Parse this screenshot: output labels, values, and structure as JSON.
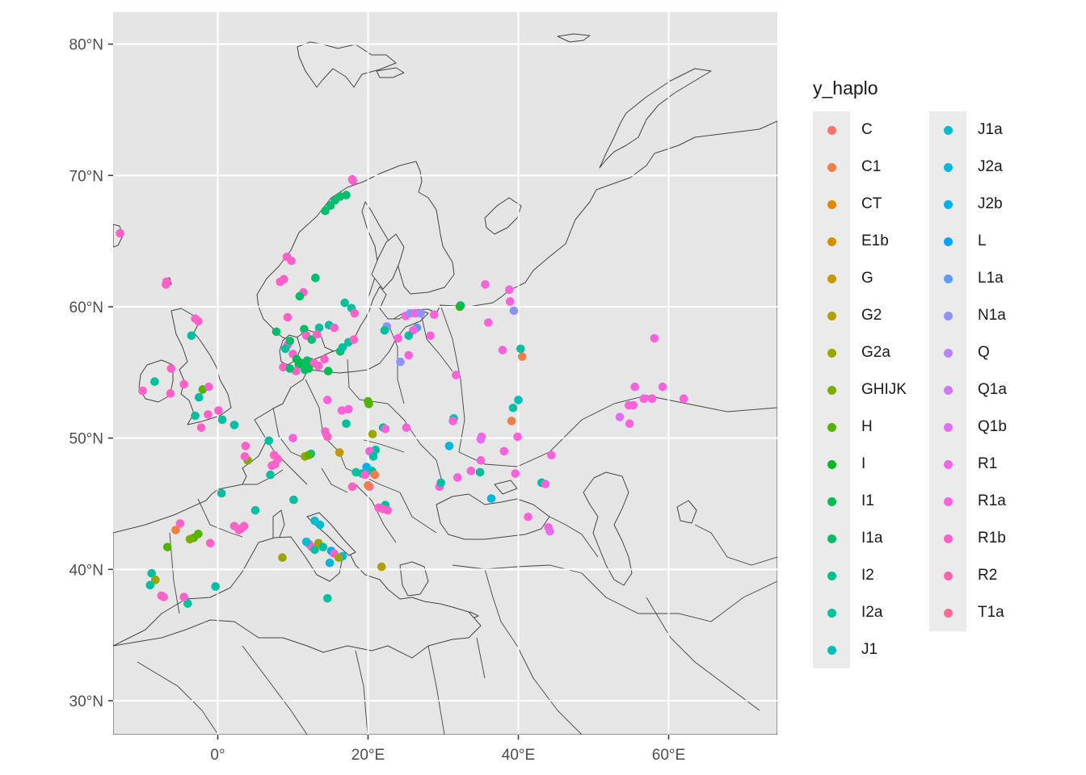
{
  "map": {
    "x_ticks": [
      "0°",
      "20°E",
      "40°E",
      "60°E"
    ],
    "y_ticks": [
      "30°N",
      "40°N",
      "50°N",
      "60°N",
      "70°N",
      "80°N"
    ],
    "colors": {
      "panel": "#e5e5e5",
      "land": "#e6e6e6",
      "border": "#444444",
      "grid": "#ffffff"
    }
  },
  "legend": {
    "title": "y_haplo",
    "items": [
      {
        "label": "C",
        "color": "#F8766D"
      },
      {
        "label": "C1",
        "color": "#EF7F49"
      },
      {
        "label": "CT",
        "color": "#E38900"
      },
      {
        "label": "E1b",
        "color": "#D49200"
      },
      {
        "label": "G",
        "color": "#C49A00"
      },
      {
        "label": "G2",
        "color": "#B0A100"
      },
      {
        "label": "G2a",
        "color": "#99A800"
      },
      {
        "label": "GHIJK",
        "color": "#7CAE00"
      },
      {
        "label": "H",
        "color": "#53B400"
      },
      {
        "label": "I",
        "color": "#00B81F"
      },
      {
        "label": "I1",
        "color": "#00BB4E"
      },
      {
        "label": "I1a",
        "color": "#00BE6C"
      },
      {
        "label": "I2",
        "color": "#00BF87"
      },
      {
        "label": "I2a",
        "color": "#00C0A0"
      },
      {
        "label": "J1",
        "color": "#00BFB7"
      },
      {
        "label": "J1a",
        "color": "#00BCCD"
      },
      {
        "label": "J2a",
        "color": "#00B7E0"
      },
      {
        "label": "J2b",
        "color": "#00AFF2"
      },
      {
        "label": "L",
        "color": "#00A5FF"
      },
      {
        "label": "L1a",
        "color": "#5E9AFF"
      },
      {
        "label": "N1a",
        "color": "#8F91FF"
      },
      {
        "label": "Q",
        "color": "#B385FF"
      },
      {
        "label": "Q1a",
        "color": "#CF78FF"
      },
      {
        "label": "Q1b",
        "color": "#E36EF6"
      },
      {
        "label": "R1",
        "color": "#F066E9"
      },
      {
        "label": "R1a",
        "color": "#FA62DB"
      },
      {
        "label": "R1b",
        "color": "#FF61C9"
      },
      {
        "label": "R2",
        "color": "#FF65AE"
      },
      {
        "label": "T1a",
        "color": "#FF6C91"
      }
    ]
  },
  "points": [
    {
      "lon": 2.2,
      "lat": 51.0,
      "h": "I2a"
    },
    {
      "lon": -13.0,
      "lat": 65.6,
      "h": "R1b"
    },
    {
      "lon": -6.8,
      "lat": 61.9,
      "h": "R1b"
    },
    {
      "lon": -6.9,
      "lat": 61.7,
      "h": "R1b"
    },
    {
      "lon": -3.0,
      "lat": 59.1,
      "h": "R1b"
    },
    {
      "lon": -2.6,
      "lat": 58.9,
      "h": "R1b"
    },
    {
      "lon": -3.5,
      "lat": 57.8,
      "h": "I2a"
    },
    {
      "lon": -6.2,
      "lat": 55.3,
      "h": "R1b"
    },
    {
      "lon": -8.4,
      "lat": 54.3,
      "h": "I2a"
    },
    {
      "lon": -10.0,
      "lat": 53.6,
      "h": "R1b"
    },
    {
      "lon": -6.3,
      "lat": 53.4,
      "h": "R1b"
    },
    {
      "lon": -4.5,
      "lat": 54.1,
      "h": "R1b"
    },
    {
      "lon": -2.0,
      "lat": 53.7,
      "h": "H"
    },
    {
      "lon": -1.2,
      "lat": 53.9,
      "h": "R1b"
    },
    {
      "lon": -2.5,
      "lat": 53.1,
      "h": "I2a"
    },
    {
      "lon": -3.0,
      "lat": 51.7,
      "h": "I2a"
    },
    {
      "lon": -1.3,
      "lat": 51.8,
      "h": "R1b"
    },
    {
      "lon": 0.1,
      "lat": 52.1,
      "h": "R1b"
    },
    {
      "lon": 0.6,
      "lat": 51.4,
      "h": "I2a"
    },
    {
      "lon": -2.2,
      "lat": 50.8,
      "h": "R1b"
    },
    {
      "lon": 3.7,
      "lat": 49.4,
      "h": "R1b"
    },
    {
      "lon": 4.0,
      "lat": 48.3,
      "h": "GHIJK"
    },
    {
      "lon": 3.6,
      "lat": 48.6,
      "h": "R1b"
    },
    {
      "lon": 6.8,
      "lat": 49.8,
      "h": "I2a"
    },
    {
      "lon": 7.5,
      "lat": 48.7,
      "h": "R1b"
    },
    {
      "lon": 7.2,
      "lat": 47.9,
      "h": "R1b"
    },
    {
      "lon": 7.0,
      "lat": 47.2,
      "h": "I2a"
    },
    {
      "lon": 0.5,
      "lat": 45.8,
      "h": "I2a"
    },
    {
      "lon": 5.0,
      "lat": 44.5,
      "h": "I2a"
    },
    {
      "lon": 2.2,
      "lat": 43.3,
      "h": "R1b"
    },
    {
      "lon": 3.1,
      "lat": 43.1,
      "h": "R1b"
    },
    {
      "lon": 3.5,
      "lat": 43.3,
      "h": "R1b"
    },
    {
      "lon": 2.8,
      "lat": 43.0,
      "h": "R1b"
    },
    {
      "lon": -5.0,
      "lat": 43.5,
      "h": "R1b"
    },
    {
      "lon": -5.6,
      "lat": 43.0,
      "h": "C1"
    },
    {
      "lon": -3.2,
      "lat": 42.4,
      "h": "H"
    },
    {
      "lon": -2.6,
      "lat": 42.7,
      "h": "H"
    },
    {
      "lon": -3.7,
      "lat": 42.3,
      "h": "GHIJK"
    },
    {
      "lon": -1.0,
      "lat": 42.0,
      "h": "R1b"
    },
    {
      "lon": -6.7,
      "lat": 41.7,
      "h": "H"
    },
    {
      "lon": -8.8,
      "lat": 39.7,
      "h": "I2a"
    },
    {
      "lon": -8.3,
      "lat": 39.2,
      "h": "G2a"
    },
    {
      "lon": -9.0,
      "lat": 38.8,
      "h": "I2a"
    },
    {
      "lon": -7.5,
      "lat": 38.0,
      "h": "R1b"
    },
    {
      "lon": -7.2,
      "lat": 37.9,
      "h": "R1b"
    },
    {
      "lon": -4.0,
      "lat": 37.4,
      "h": "I2a"
    },
    {
      "lon": -4.5,
      "lat": 37.9,
      "h": "R1b"
    },
    {
      "lon": -0.3,
      "lat": 38.7,
      "h": "I2a"
    },
    {
      "lon": 9.2,
      "lat": 63.8,
      "h": "R1b"
    },
    {
      "lon": 9.8,
      "lat": 63.5,
      "h": "R1b"
    },
    {
      "lon": 8.3,
      "lat": 61.9,
      "h": "R1b"
    },
    {
      "lon": 8.8,
      "lat": 62.1,
      "h": "R1b"
    },
    {
      "lon": 11.4,
      "lat": 61.1,
      "h": "R1b"
    },
    {
      "lon": 10.9,
      "lat": 60.8,
      "h": "I1a"
    },
    {
      "lon": 9.3,
      "lat": 59.2,
      "h": "R1b"
    },
    {
      "lon": 7.8,
      "lat": 58.1,
      "h": "I1a"
    },
    {
      "lon": 9.3,
      "lat": 57.1,
      "h": "R1b"
    },
    {
      "lon": 9.0,
      "lat": 56.8,
      "h": "I2a"
    },
    {
      "lon": 9.6,
      "lat": 57.4,
      "h": "I1a"
    },
    {
      "lon": 11.5,
      "lat": 58.3,
      "h": "I1a"
    },
    {
      "lon": 11.8,
      "lat": 57.8,
      "h": "R1b"
    },
    {
      "lon": 12.5,
      "lat": 57.5,
      "h": "I1a"
    },
    {
      "lon": 13.5,
      "lat": 58.4,
      "h": "I2a"
    },
    {
      "lon": 14.8,
      "lat": 58.6,
      "h": "I2a"
    },
    {
      "lon": 15.5,
      "lat": 58.4,
      "h": "R1b"
    },
    {
      "lon": 13.2,
      "lat": 57.9,
      "h": "R1b"
    },
    {
      "lon": 16.9,
      "lat": 60.3,
      "h": "I2a"
    },
    {
      "lon": 17.8,
      "lat": 59.9,
      "h": "I2a"
    },
    {
      "lon": 18.2,
      "lat": 59.5,
      "h": "R1b"
    },
    {
      "lon": 17.4,
      "lat": 57.3,
      "h": "I2a"
    },
    {
      "lon": 18.1,
      "lat": 57.5,
      "h": "R1b"
    },
    {
      "lon": 16.3,
      "lat": 56.6,
      "h": "I1a"
    },
    {
      "lon": 16.6,
      "lat": 56.9,
      "h": "I2a"
    },
    {
      "lon": 10.0,
      "lat": 56.4,
      "h": "R1b"
    },
    {
      "lon": 10.5,
      "lat": 56.0,
      "h": "I1"
    },
    {
      "lon": 10.8,
      "lat": 55.6,
      "h": "I1"
    },
    {
      "lon": 11.4,
      "lat": 55.7,
      "h": "I1"
    },
    {
      "lon": 11.9,
      "lat": 55.9,
      "h": "I1a"
    },
    {
      "lon": 12.3,
      "lat": 55.8,
      "h": "I1"
    },
    {
      "lon": 12.8,
      "lat": 55.7,
      "h": "R1b"
    },
    {
      "lon": 12.1,
      "lat": 55.3,
      "h": "I1"
    },
    {
      "lon": 11.6,
      "lat": 55.2,
      "h": "I1a"
    },
    {
      "lon": 10.4,
      "lat": 55.1,
      "h": "R1b"
    },
    {
      "lon": 13.4,
      "lat": 55.5,
      "h": "R1b"
    },
    {
      "lon": 14.2,
      "lat": 56.0,
      "h": "R1b"
    },
    {
      "lon": 14.7,
      "lat": 55.1,
      "h": "I1"
    },
    {
      "lon": 8.7,
      "lat": 55.4,
      "h": "R1b"
    },
    {
      "lon": 9.6,
      "lat": 55.3,
      "h": "I1a"
    },
    {
      "lon": 13.0,
      "lat": 62.2,
      "h": "I1a"
    },
    {
      "lon": 14.3,
      "lat": 67.3,
      "h": "I1a"
    },
    {
      "lon": 15.0,
      "lat": 67.7,
      "h": "I1a"
    },
    {
      "lon": 15.6,
      "lat": 68.1,
      "h": "I1a"
    },
    {
      "lon": 16.3,
      "lat": 68.4,
      "h": "I1a"
    },
    {
      "lon": 17.1,
      "lat": 68.5,
      "h": "I1a"
    },
    {
      "lon": 18.0,
      "lat": 69.6,
      "h": "R1b"
    },
    {
      "lon": 17.9,
      "lat": 69.7,
      "h": "R1b"
    },
    {
      "lon": 14.6,
      "lat": 52.9,
      "h": "R1a"
    },
    {
      "lon": 17.4,
      "lat": 52.2,
      "h": "R1a"
    },
    {
      "lon": 16.5,
      "lat": 52.1,
      "h": "R1a"
    },
    {
      "lon": 20.1,
      "lat": 52.6,
      "h": "H"
    },
    {
      "lon": 20.0,
      "lat": 52.8,
      "h": "H"
    },
    {
      "lon": 17.1,
      "lat": 51.1,
      "h": "I2a"
    },
    {
      "lon": 14.3,
      "lat": 50.5,
      "h": "R1b"
    },
    {
      "lon": 14.6,
      "lat": 50.1,
      "h": "R1b"
    },
    {
      "lon": 10.0,
      "lat": 50.0,
      "h": "R1a"
    },
    {
      "lon": 11.6,
      "lat": 48.6,
      "h": "G2a"
    },
    {
      "lon": 12.4,
      "lat": 48.8,
      "h": "I2a"
    },
    {
      "lon": 12.1,
      "lat": 48.7,
      "h": "H"
    },
    {
      "lon": 16.2,
      "lat": 48.9,
      "h": "G"
    },
    {
      "lon": 20.6,
      "lat": 50.3,
      "h": "G2a"
    },
    {
      "lon": 22.0,
      "lat": 50.8,
      "h": "I2a"
    },
    {
      "lon": 22.3,
      "lat": 50.7,
      "h": "R1a"
    },
    {
      "lon": 21.0,
      "lat": 49.1,
      "h": "I2a"
    },
    {
      "lon": 20.2,
      "lat": 49.0,
      "h": "R1a"
    },
    {
      "lon": 20.7,
      "lat": 48.6,
      "h": "I2a"
    },
    {
      "lon": 19.8,
      "lat": 47.8,
      "h": "J2b"
    },
    {
      "lon": 20.5,
      "lat": 47.5,
      "h": "I2a"
    },
    {
      "lon": 19.2,
      "lat": 47.3,
      "h": "I2a"
    },
    {
      "lon": 19.6,
      "lat": 47.2,
      "h": "R1b"
    },
    {
      "lon": 20.9,
      "lat": 47.2,
      "h": "C1"
    },
    {
      "lon": 20.2,
      "lat": 46.3,
      "h": "R1a"
    },
    {
      "lon": 20.0,
      "lat": 46.4,
      "h": "C1"
    },
    {
      "lon": 18.4,
      "lat": 47.4,
      "h": "I2a"
    },
    {
      "lon": 17.9,
      "lat": 46.3,
      "h": "R1b"
    },
    {
      "lon": 21.4,
      "lat": 44.7,
      "h": "R1b"
    },
    {
      "lon": 22.3,
      "lat": 44.9,
      "h": "I2a"
    },
    {
      "lon": 22.0,
      "lat": 44.6,
      "h": "R1b"
    },
    {
      "lon": 22.6,
      "lat": 44.5,
      "h": "R1b"
    },
    {
      "lon": 25.1,
      "lat": 50.8,
      "h": "R1a"
    },
    {
      "lon": 24.0,
      "lat": 57.6,
      "h": "R1a"
    },
    {
      "lon": 22.5,
      "lat": 58.5,
      "h": "N1a"
    },
    {
      "lon": 22.2,
      "lat": 58.2,
      "h": "I2a"
    },
    {
      "lon": 25.0,
      "lat": 59.3,
      "h": "R1a"
    },
    {
      "lon": 25.6,
      "lat": 59.5,
      "h": "N1a"
    },
    {
      "lon": 26.3,
      "lat": 59.5,
      "h": "R1a"
    },
    {
      "lon": 27.0,
      "lat": 59.5,
      "h": "N1a"
    },
    {
      "lon": 26.5,
      "lat": 58.4,
      "h": "L1a"
    },
    {
      "lon": 26.0,
      "lat": 58.2,
      "h": "R1a"
    },
    {
      "lon": 25.4,
      "lat": 57.8,
      "h": "I2a"
    },
    {
      "lon": 24.3,
      "lat": 55.8,
      "h": "N1a"
    },
    {
      "lon": 25.4,
      "lat": 56.3,
      "h": "R1a"
    },
    {
      "lon": 28.3,
      "lat": 57.8,
      "h": "R1a"
    },
    {
      "lon": 28.8,
      "lat": 59.4,
      "h": "R1a"
    },
    {
      "lon": 32.2,
      "lat": 60.0,
      "h": "H"
    },
    {
      "lon": 32.3,
      "lat": 60.1,
      "h": "I1"
    },
    {
      "lon": 31.7,
      "lat": 54.8,
      "h": "R1a"
    },
    {
      "lon": 31.4,
      "lat": 51.5,
      "h": "I2a"
    },
    {
      "lon": 31.3,
      "lat": 51.3,
      "h": "R1a"
    },
    {
      "lon": 30.8,
      "lat": 49.4,
      "h": "J2a"
    },
    {
      "lon": 31.9,
      "lat": 47.0,
      "h": "R1a"
    },
    {
      "lon": 29.5,
      "lat": 46.3,
      "h": "R1a"
    },
    {
      "lon": 29.7,
      "lat": 46.6,
      "h": "I2a"
    },
    {
      "lon": 33.7,
      "lat": 47.5,
      "h": "R1a"
    },
    {
      "lon": 34.9,
      "lat": 47.4,
      "h": "I2a"
    },
    {
      "lon": 35.0,
      "lat": 48.3,
      "h": "R1a"
    },
    {
      "lon": 35.1,
      "lat": 50.1,
      "h": "R1a"
    },
    {
      "lon": 35.0,
      "lat": 49.9,
      "h": "Q1b"
    },
    {
      "lon": 36.4,
      "lat": 45.4,
      "h": "J2a"
    },
    {
      "lon": 35.6,
      "lat": 61.7,
      "h": "R1a"
    },
    {
      "lon": 36.0,
      "lat": 58.8,
      "h": "R1a"
    },
    {
      "lon": 37.9,
      "lat": 56.7,
      "h": "R1a"
    },
    {
      "lon": 38.8,
      "lat": 61.3,
      "h": "R1a"
    },
    {
      "lon": 38.9,
      "lat": 60.4,
      "h": "R1a"
    },
    {
      "lon": 39.4,
      "lat": 59.7,
      "h": "N1a"
    },
    {
      "lon": 40.3,
      "lat": 56.8,
      "h": "I2a"
    },
    {
      "lon": 40.5,
      "lat": 56.2,
      "h": "C1"
    },
    {
      "lon": 39.3,
      "lat": 52.3,
      "h": "I2a"
    },
    {
      "lon": 40.0,
      "lat": 52.9,
      "h": "J1"
    },
    {
      "lon": 39.1,
      "lat": 51.3,
      "h": "C1"
    },
    {
      "lon": 39.9,
      "lat": 50.1,
      "h": "R1a"
    },
    {
      "lon": 38.1,
      "lat": 49.0,
      "h": "R1a"
    },
    {
      "lon": 39.6,
      "lat": 47.3,
      "h": "R1a"
    },
    {
      "lon": 41.3,
      "lat": 44.0,
      "h": "R1a"
    },
    {
      "lon": 43.1,
      "lat": 46.6,
      "h": "I2a"
    },
    {
      "lon": 43.6,
      "lat": 46.5,
      "h": "R1a"
    },
    {
      "lon": 44.4,
      "lat": 48.7,
      "h": "R1a"
    },
    {
      "lon": 44.0,
      "lat": 43.2,
      "h": "R1a"
    },
    {
      "lon": 44.2,
      "lat": 42.9,
      "h": "Q1b"
    },
    {
      "lon": 55.5,
      "lat": 53.9,
      "h": "R1a"
    },
    {
      "lon": 54.7,
      "lat": 52.5,
      "h": "R1a"
    },
    {
      "lon": 55.3,
      "lat": 52.5,
      "h": "R1a"
    },
    {
      "lon": 56.7,
      "lat": 53.0,
      "h": "R1a"
    },
    {
      "lon": 57.8,
      "lat": 53.0,
      "h": "R1a"
    },
    {
      "lon": 59.2,
      "lat": 53.9,
      "h": "R1a"
    },
    {
      "lon": 58.1,
      "lat": 57.6,
      "h": "R1a"
    },
    {
      "lon": 53.5,
      "lat": 51.6,
      "h": "Q1b"
    },
    {
      "lon": 62.0,
      "lat": 53.0,
      "h": "R1a"
    },
    {
      "lon": 54.8,
      "lat": 51.1,
      "h": "R1a"
    },
    {
      "lon": 10.1,
      "lat": 45.3,
      "h": "I2a"
    },
    {
      "lon": 12.2,
      "lat": 41.9,
      "h": "R1b"
    },
    {
      "lon": 12.5,
      "lat": 41.7,
      "h": "R1b"
    },
    {
      "lon": 11.8,
      "lat": 42.1,
      "h": "J1a"
    },
    {
      "lon": 12.9,
      "lat": 41.5,
      "h": "I2a"
    },
    {
      "lon": 13.4,
      "lat": 42.0,
      "h": "G2a"
    },
    {
      "lon": 12.9,
      "lat": 43.7,
      "h": "J1a"
    },
    {
      "lon": 13.6,
      "lat": 43.4,
      "h": "J1a"
    },
    {
      "lon": 14.0,
      "lat": 41.7,
      "h": "I2a"
    },
    {
      "lon": 15.1,
      "lat": 41.4,
      "h": "J2b"
    },
    {
      "lon": 15.5,
      "lat": 41.2,
      "h": "R1b"
    },
    {
      "lon": 14.9,
      "lat": 40.5,
      "h": "J2a"
    },
    {
      "lon": 16.6,
      "lat": 41.0,
      "h": "J2a"
    },
    {
      "lon": 16.1,
      "lat": 40.9,
      "h": "G2a"
    },
    {
      "lon": 8.6,
      "lat": 40.9,
      "h": "G2a"
    },
    {
      "lon": 14.6,
      "lat": 37.8,
      "h": "I2a"
    },
    {
      "lon": 21.8,
      "lat": 40.2,
      "h": "G2"
    },
    {
      "lon": 7.6,
      "lat": 48.0,
      "h": "R1b"
    },
    {
      "lon": 8.0,
      "lat": 48.4,
      "h": "R1b"
    }
  ]
}
